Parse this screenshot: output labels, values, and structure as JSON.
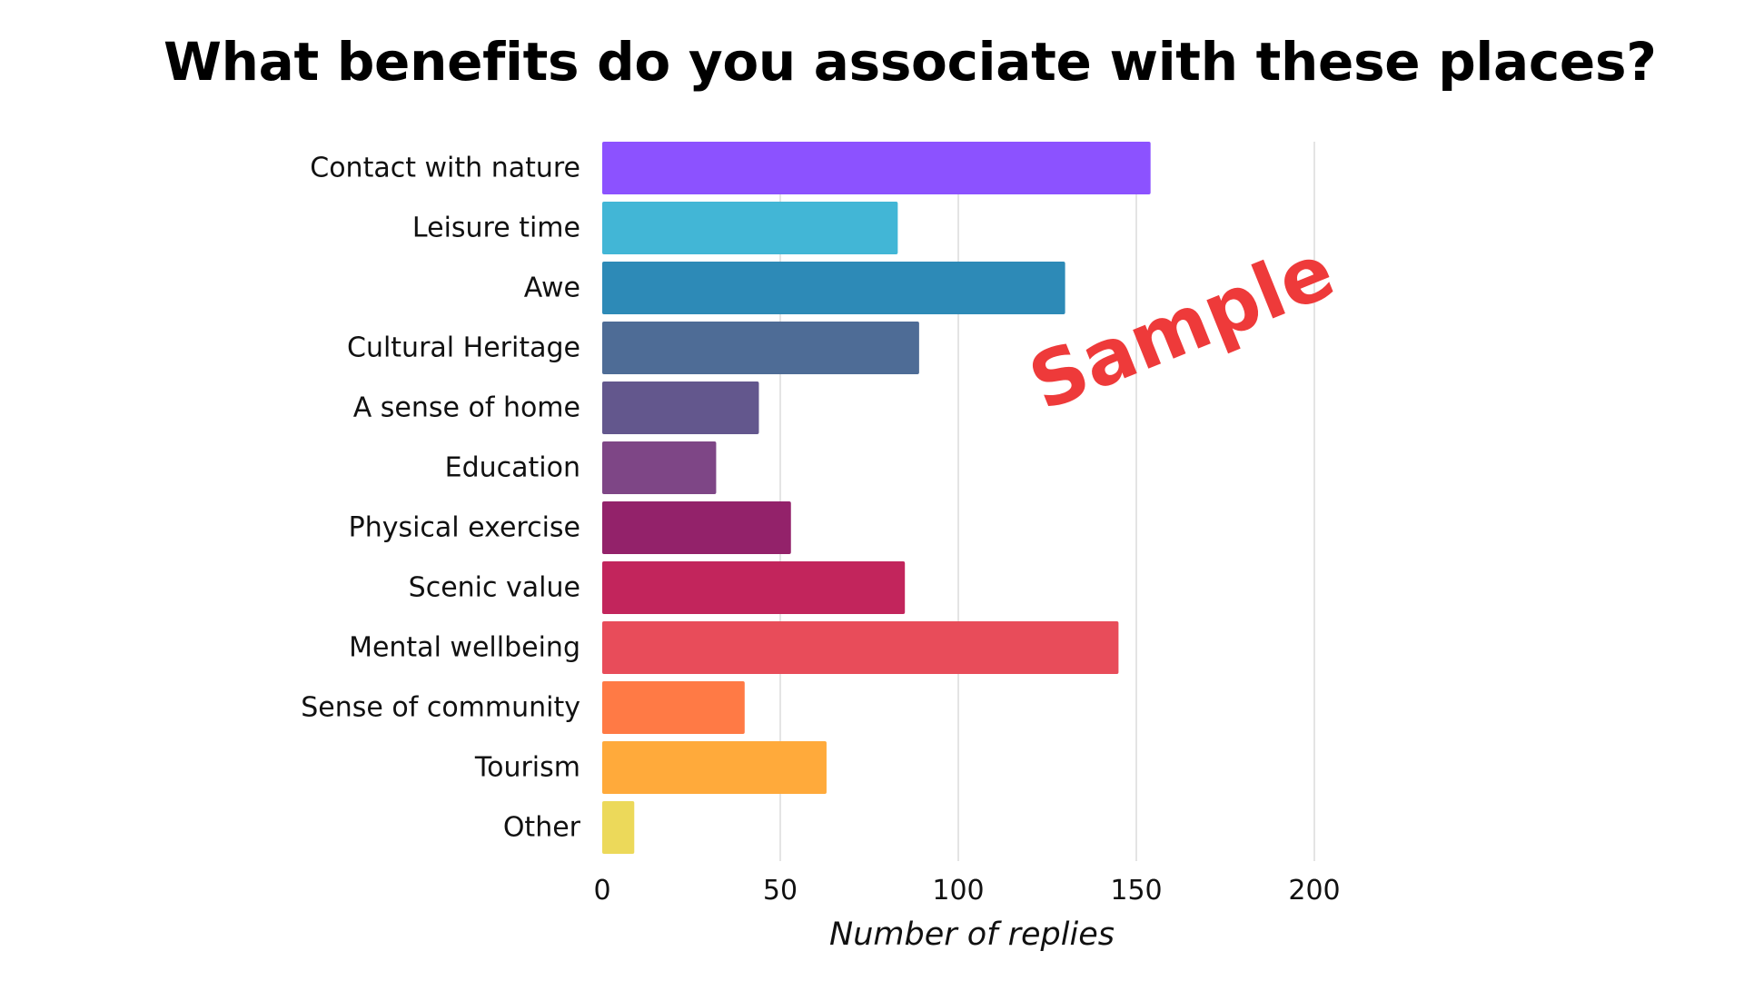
{
  "chart_data": {
    "type": "bar",
    "orientation": "horizontal",
    "title": "What benefits do you associate with these places?",
    "xlabel": "Number of replies",
    "ylabel": "",
    "xlim": [
      0,
      200
    ],
    "xticks": [
      "0",
      "50",
      "100",
      "150",
      "200"
    ],
    "grid": true,
    "categories": [
      "Contact with nature",
      "Leisure time",
      "Awe",
      "Cultural Heritage",
      "A sense of home",
      "Education",
      "Physical exercise",
      "Scenic value",
      "Mental wellbeing",
      "Sense of community",
      "Tourism",
      "Other"
    ],
    "values": [
      154,
      83,
      130,
      89,
      44,
      32,
      53,
      85,
      145,
      40,
      63,
      9
    ],
    "colors": [
      "#8c52ff",
      "#42b6d6",
      "#2d8ab7",
      "#4e6c96",
      "#63578d",
      "#7e4686",
      "#93226a",
      "#c2255c",
      "#e84c5a",
      "#ff7a45",
      "#ffaa3b",
      "#ecd95a"
    ],
    "watermark": "Sample"
  }
}
